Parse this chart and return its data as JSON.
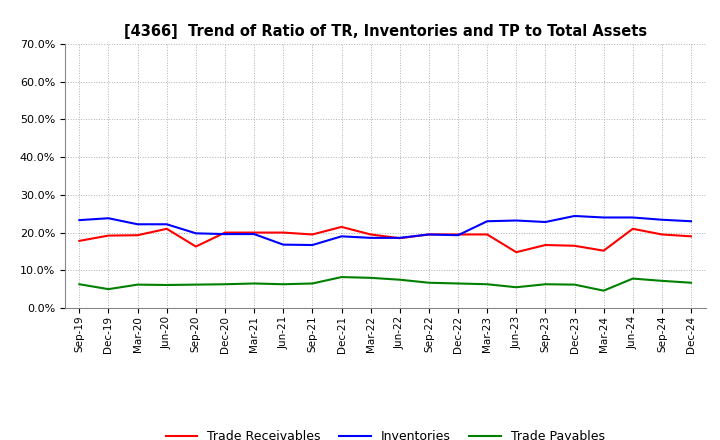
{
  "title": "[4366]  Trend of Ratio of TR, Inventories and TP to Total Assets",
  "x_labels": [
    "Sep-19",
    "Dec-19",
    "Mar-20",
    "Jun-20",
    "Sep-20",
    "Dec-20",
    "Mar-21",
    "Jun-21",
    "Sep-21",
    "Dec-21",
    "Mar-22",
    "Jun-22",
    "Sep-22",
    "Dec-22",
    "Mar-23",
    "Jun-23",
    "Sep-23",
    "Dec-23",
    "Mar-24",
    "Jun-24",
    "Sep-24",
    "Dec-24"
  ],
  "trade_receivables": [
    0.178,
    0.192,
    0.193,
    0.21,
    0.163,
    0.2,
    0.2,
    0.2,
    0.195,
    0.215,
    0.195,
    0.185,
    0.195,
    0.195,
    0.195,
    0.148,
    0.167,
    0.165,
    0.152,
    0.21,
    0.195,
    0.19
  ],
  "inventories": [
    0.233,
    0.238,
    0.222,
    0.222,
    0.198,
    0.196,
    0.196,
    0.168,
    0.167,
    0.19,
    0.186,
    0.186,
    0.195,
    0.193,
    0.23,
    0.232,
    0.228,
    0.244,
    0.24,
    0.24,
    0.234,
    0.23
  ],
  "trade_payables": [
    0.063,
    0.05,
    0.062,
    0.061,
    0.062,
    0.063,
    0.065,
    0.063,
    0.065,
    0.082,
    0.08,
    0.075,
    0.067,
    0.065,
    0.063,
    0.055,
    0.063,
    0.062,
    0.046,
    0.078,
    0.072,
    0.067
  ],
  "color_tr": "#ff0000",
  "color_inv": "#0000ff",
  "color_tp": "#008000",
  "ylim": [
    0.0,
    0.7
  ],
  "yticks": [
    0.0,
    0.1,
    0.2,
    0.3,
    0.4,
    0.5,
    0.6,
    0.7
  ],
  "legend_labels": [
    "Trade Receivables",
    "Inventories",
    "Trade Payables"
  ],
  "background_color": "#ffffff",
  "grid_color": "#b0b0b0"
}
